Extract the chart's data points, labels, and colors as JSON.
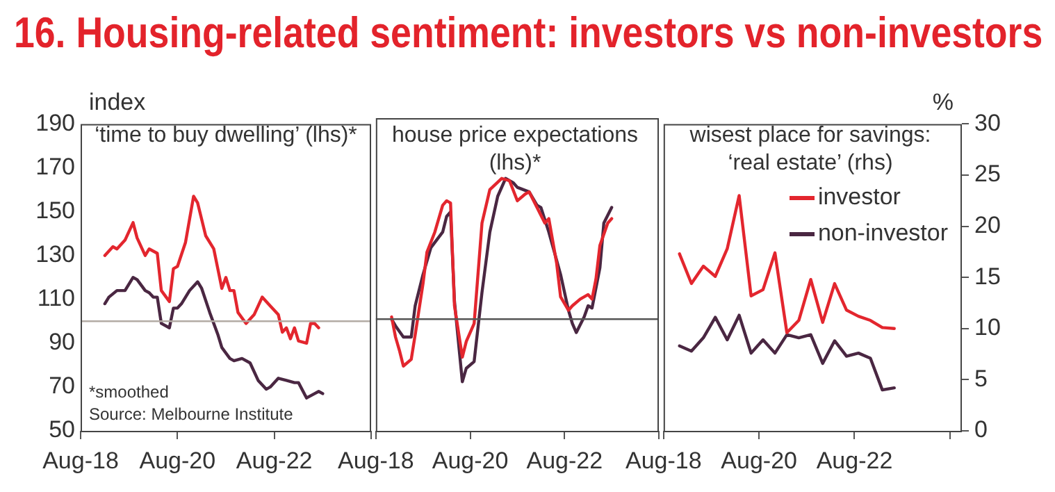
{
  "chart_data": [
    {
      "type": "line",
      "title": "16. Housing-related sentiment: investors vs non-investors",
      "subtitle": "‘time to buy dwelling’ (lhs)*",
      "ylabel": "index",
      "xlim": [
        "2018-08",
        "2024-08"
      ],
      "xticks": [
        {
          "value": "2018-08",
          "label": "Aug-18"
        },
        {
          "value": "2020-08",
          "label": "Aug-20"
        },
        {
          "value": "2022-08",
          "label": "Aug-22"
        },
        {
          "value": "2024-08",
          "label": null
        }
      ],
      "ylim": [
        50,
        190
      ],
      "yticks": [
        50,
        70,
        90,
        110,
        130,
        150,
        170,
        190
      ],
      "ref_lines": [
        {
          "axis": "y",
          "value": 100,
          "color": "#b3aba4"
        }
      ],
      "annotations": [
        "*smoothed",
        "Source: Melbourne Institute"
      ],
      "series": [
        {
          "color": "#e3262e",
          "x": [
            "2019-02",
            "2019-04",
            "2019-05",
            "2019-07",
            "2019-09",
            "2019-10",
            "2019-12",
            "2020-01",
            "2020-03",
            "2020-04",
            "2020-06",
            "2020-07",
            "2020-08",
            "2020-10",
            "2020-12",
            "2021-01",
            "2021-03",
            "2021-05",
            "2021-06",
            "2021-07",
            "2021-08",
            "2021-09",
            "2021-10",
            "2021-11",
            "2022-01",
            "2022-03",
            "2022-05",
            "2022-07",
            "2022-09",
            "2022-10",
            "2022-11",
            "2022-12",
            "2023-01",
            "2023-02",
            "2023-04",
            "2023-05",
            "2023-06",
            "2023-07"
          ],
          "values": [
            130,
            134,
            133,
            137,
            145,
            138,
            130,
            133,
            131,
            114,
            109,
            124,
            125,
            136,
            157,
            154,
            139,
            133,
            124,
            115,
            120,
            114,
            114,
            104,
            99,
            103,
            111,
            107,
            103,
            95,
            97,
            92,
            97,
            91,
            90,
            99,
            99,
            97
          ]
        },
        {
          "color": "#4a2742",
          "x": [
            "2019-02",
            "2019-03",
            "2019-05",
            "2019-07",
            "2019-09",
            "2019-10",
            "2019-12",
            "2020-01",
            "2020-02",
            "2020-03",
            "2020-04",
            "2020-06",
            "2020-07",
            "2020-08",
            "2020-09",
            "2020-11",
            "2021-01",
            "2021-02",
            "2021-04",
            "2021-06",
            "2021-07",
            "2021-09",
            "2021-10",
            "2021-12",
            "2022-02",
            "2022-04",
            "2022-06",
            "2022-07",
            "2022-09",
            "2022-11",
            "2023-01",
            "2023-02",
            "2023-04",
            "2023-06",
            "2023-07",
            "2023-08"
          ],
          "values": [
            108,
            111,
            114,
            114,
            120,
            119,
            114,
            113,
            111,
            111,
            99,
            97,
            106,
            106,
            108,
            114,
            118,
            115,
            104,
            94,
            88,
            83,
            82,
            83,
            81,
            73,
            69,
            70,
            74,
            73,
            72,
            72,
            65,
            67,
            68,
            67
          ]
        }
      ]
    },
    {
      "type": "line",
      "subtitle": "house price expectations (lhs)*",
      "xlim": [
        "2018-08",
        "2024-08"
      ],
      "xticks": [
        {
          "value": "2018-08",
          "label": "Aug-18"
        },
        {
          "value": "2020-08",
          "label": "Aug-20"
        },
        {
          "value": "2022-08",
          "label": "Aug-22"
        },
        {
          "value": "2024-08",
          "label": null
        }
      ],
      "ylim": [
        50,
        190
      ],
      "yticks": [
        50,
        70,
        90,
        110,
        130,
        150,
        170,
        190
      ],
      "tick_labels": "x",
      "ref_lines": [
        {
          "axis": "y",
          "value": 100,
          "color": "#555555"
        }
      ],
      "series": [
        {
          "color": "#e3262e",
          "x": [
            "2018-12",
            "2019-01",
            "2019-02",
            "2019-03",
            "2019-05",
            "2019-06",
            "2019-08",
            "2019-09",
            "2019-11",
            "2020-01",
            "2020-02",
            "2020-03",
            "2020-04",
            "2020-06",
            "2020-07",
            "2020-09",
            "2020-11",
            "2021-01",
            "2021-04",
            "2021-06",
            "2021-08",
            "2021-10",
            "2021-11",
            "2022-01",
            "2022-03",
            "2022-04",
            "2022-06",
            "2022-07",
            "2022-09",
            "2022-10",
            "2022-12",
            "2023-02",
            "2023-03",
            "2023-04",
            "2023-05",
            "2023-07",
            "2023-08"
          ],
          "values": [
            101,
            92,
            86,
            79,
            82,
            93,
            116,
            130,
            139,
            151,
            153,
            152,
            106,
            83,
            90,
            98,
            143,
            158,
            163,
            162,
            153,
            156,
            157,
            150,
            143,
            145,
            125,
            110,
            104,
            106,
            109,
            111,
            109,
            118,
            133,
            143,
            145
          ]
        },
        {
          "color": "#4a2742",
          "x": [
            "2018-12",
            "2019-01",
            "2019-03",
            "2019-05",
            "2019-06",
            "2019-08",
            "2019-10",
            "2020-01",
            "2020-02",
            "2020-03",
            "2020-04",
            "2020-06",
            "2020-07",
            "2020-09",
            "2020-11",
            "2021-01",
            "2021-03",
            "2021-05",
            "2021-07",
            "2021-08",
            "2021-11",
            "2022-01",
            "2022-02",
            "2022-04",
            "2022-07",
            "2022-09",
            "2022-10",
            "2022-11",
            "2023-01",
            "2023-02",
            "2023-03",
            "2023-05",
            "2023-06",
            "2023-08"
          ],
          "values": [
            100,
            97,
            92,
            92,
            106,
            120,
            132,
            139,
            146,
            148,
            108,
            72,
            78,
            81,
            112,
            139,
            155,
            163,
            161,
            159,
            157,
            151,
            150,
            139,
            120,
            104,
            98,
            94,
            101,
            106,
            105,
            123,
            143,
            150
          ]
        }
      ]
    },
    {
      "type": "line",
      "subtitle": "wisest place for savings: ‘real estate’ (rhs)",
      "y2label": "%",
      "legend": "top right",
      "xlim": [
        "2018-08",
        "2024-11"
      ],
      "xticks": [
        {
          "value": "2018-08",
          "label": "Aug-18"
        },
        {
          "value": "2020-08",
          "label": "Aug-20"
        },
        {
          "value": "2022-08",
          "label": "Aug-22"
        },
        {
          "value": "2024-08",
          "label": null
        }
      ],
      "y2lim": [
        0,
        30
      ],
      "y2ticks": [
        0,
        5,
        10,
        15,
        20,
        25,
        30
      ],
      "x": [
        "2018-12",
        "2019-03",
        "2019-06",
        "2019-09",
        "2019-12",
        "2020-03",
        "2020-06",
        "2020-09",
        "2020-12",
        "2021-03",
        "2021-06",
        "2021-09",
        "2021-12",
        "2022-03",
        "2022-06",
        "2022-09",
        "2022-12",
        "2023-03",
        "2023-06"
      ],
      "series": [
        {
          "name": "investor",
          "color": "#e3262e",
          "axis": "y2",
          "values": [
            17.3,
            14.4,
            16.1,
            15.1,
            17.8,
            23.0,
            13.2,
            13.8,
            17.4,
            9.6,
            10.8,
            14.8,
            10.6,
            14.4,
            11.8,
            11.2,
            10.8,
            10.1,
            10.0
          ]
        },
        {
          "name": "non-investor",
          "color": "#4a2742",
          "axis": "y2",
          "values": [
            8.3,
            7.8,
            9.1,
            11.1,
            8.9,
            11.3,
            7.6,
            8.9,
            7.6,
            9.4,
            9.1,
            9.4,
            6.6,
            8.8,
            7.3,
            7.6,
            7.1,
            4.0,
            4.2
          ]
        }
      ]
    }
  ]
}
